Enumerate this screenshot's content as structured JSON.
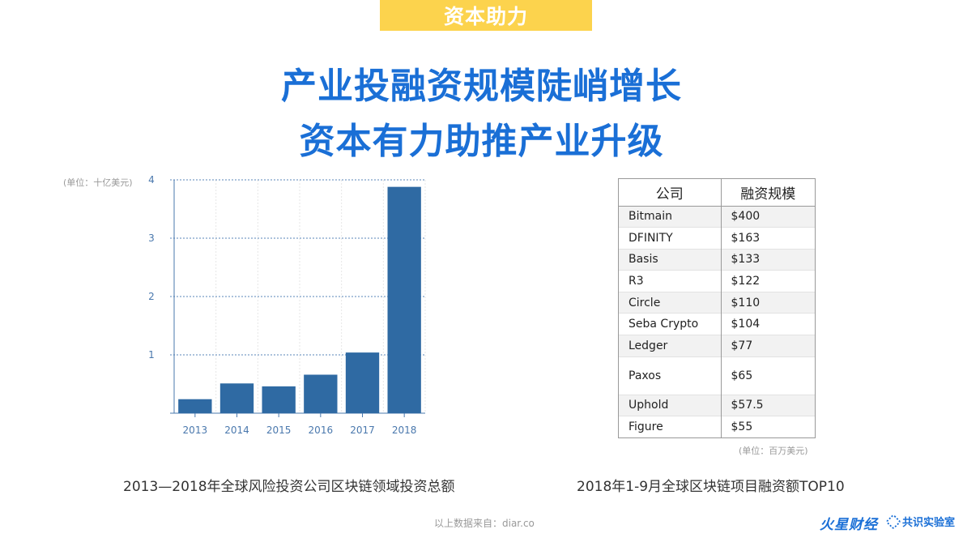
{
  "tag": "资本助力",
  "headline": {
    "line1": "产业投融资规模陡峭增长",
    "line2": "资本有力助推产业升级"
  },
  "chart_data": {
    "type": "bar",
    "unit_label": "(单位：十亿美元)",
    "categories": [
      "2013",
      "2014",
      "2015",
      "2016",
      "2017",
      "2018"
    ],
    "values": [
      0.24,
      0.51,
      0.46,
      0.66,
      1.04,
      3.88
    ],
    "ylim": [
      0,
      4
    ],
    "yticks": [
      1,
      2,
      3,
      4
    ],
    "grid": true,
    "bar_color": "#2f6aa3",
    "caption": "2013—2018年全球风险投资公司区块链领域投资总额"
  },
  "table": {
    "headers": [
      "公司",
      "融资规模"
    ],
    "rows": [
      {
        "company": "Bitmain",
        "amount": "$400"
      },
      {
        "company": "DFINITY",
        "amount": "$163"
      },
      {
        "company": "Basis",
        "amount": "$133"
      },
      {
        "company": "R3",
        "amount": "$122"
      },
      {
        "company": "Circle",
        "amount": "$110"
      },
      {
        "company": "Seba Crypto",
        "amount": "$104"
      },
      {
        "company": "Ledger",
        "amount": "$77"
      },
      {
        "company": "Paxos",
        "amount": "$65"
      },
      {
        "company": "Uphold",
        "amount": "$57.5"
      },
      {
        "company": "Figure",
        "amount": "$55"
      }
    ],
    "unit": "(单位：百万美元)",
    "caption": "2018年1-9月全球区块链项目融资额TOP10"
  },
  "source": "以上数据来自：diar.co",
  "logos": {
    "brand1": "火星财经",
    "brand2": "共识实验室"
  },
  "colors": {
    "accent": "#1a6fd6",
    "tag_bg": "#fcd34d"
  }
}
